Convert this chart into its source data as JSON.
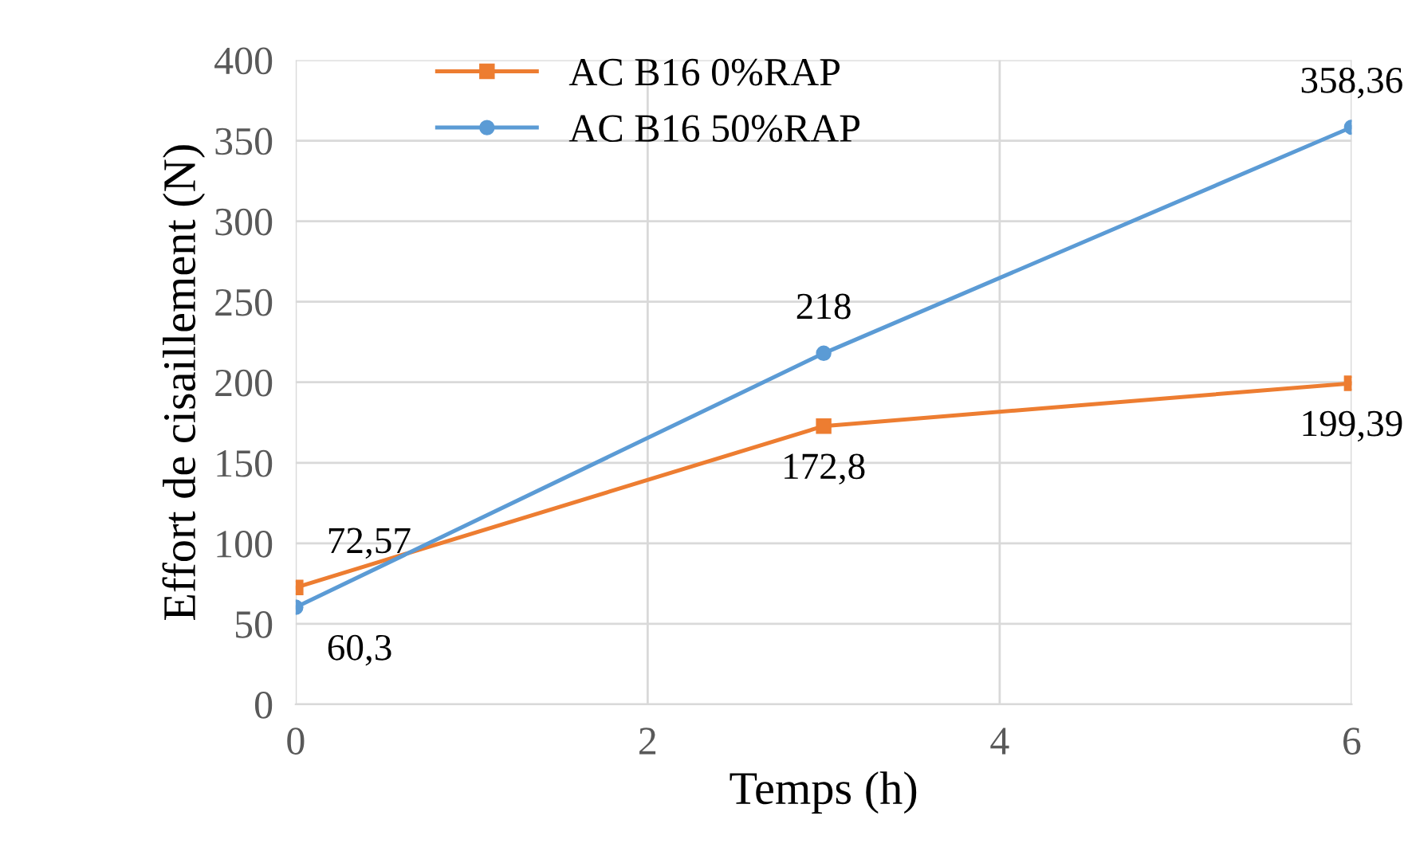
{
  "chart_data": {
    "type": "line",
    "xlabel": "Temps (h)",
    "ylabel": "Effort de cisaillement (N)",
    "x": [
      0,
      3,
      6
    ],
    "series": [
      {
        "name": "AC B16 0%RAP",
        "color": "#ed7d31",
        "marker": "square",
        "values": [
          72.57,
          172.8,
          199.39
        ],
        "value_labels": [
          "72,57",
          "172,8",
          "199,39"
        ]
      },
      {
        "name": "AC B16 50%RAP",
        "color": "#5b9bd5",
        "marker": "circle",
        "values": [
          60.3,
          218,
          358.36
        ],
        "value_labels": [
          "60,3",
          "218",
          "358,36"
        ]
      }
    ],
    "xlim": [
      0,
      6
    ],
    "xticks": [
      0,
      2,
      4,
      6
    ],
    "ylim": [
      0,
      400
    ],
    "yticks": [
      0,
      50,
      100,
      150,
      200,
      250,
      300,
      350,
      400
    ],
    "grid": true,
    "legend": "top left",
    "line_style": "solid"
  }
}
